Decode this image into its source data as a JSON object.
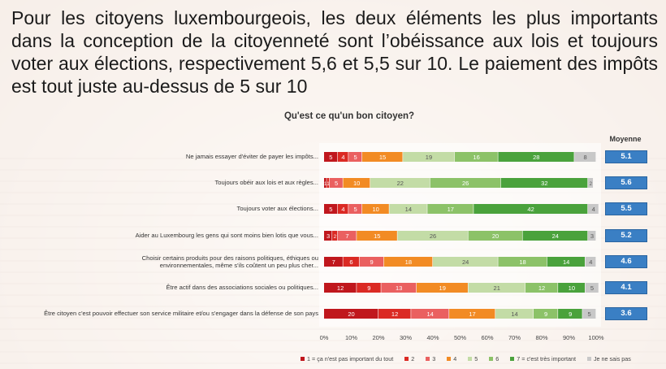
{
  "headline": "Pour les citoyens luxembourgeois, les deux éléments les plus importants dans la conception de la citoyenneté sont l’obéissance aux lois et toujours voter aux élections, respectivement 5,6 et 5,5 sur 10. Le paiement des impôts est tout juste au-dessus de 5 sur 10",
  "chart_data": {
    "type": "bar",
    "orientation": "horizontal",
    "stacked": true,
    "title": "Qu'est ce qu'un bon citoyen?",
    "average_header": "Moyenne",
    "categories": [
      "Ne jamais essayer d'éviter de payer les impôts...",
      "Toujours obéir aux lois et aux règles...",
      "Toujours voter aux élections...",
      "Aider au Luxembourg les gens qui sont moins bien lotis que vous...",
      "Choisir certains produits pour des raisons politiques, éthiques ou environnementales, même s'ils coûtent un peu plus cher...",
      "Être actif dans des associations sociales ou politiques...",
      "Être citoyen c'est pouvoir effectuer son service militaire et/ou s'engager dans la défense de son pays"
    ],
    "series": [
      {
        "name": "1 = ça n'est pas important du tout",
        "color": "#c0171d",
        "values": [
          5,
          1,
          5,
          3,
          7,
          12,
          20
        ]
      },
      {
        "name": "2",
        "color": "#db2a24",
        "values": [
          4,
          1,
          4,
          2,
          6,
          9,
          12
        ]
      },
      {
        "name": "3",
        "color": "#ea6060",
        "values": [
          5,
          5,
          5,
          7,
          9,
          13,
          14
        ]
      },
      {
        "name": "4",
        "color": "#f28b24",
        "values": [
          15,
          10,
          10,
          15,
          18,
          19,
          17
        ]
      },
      {
        "name": "5",
        "color": "#c3dca6",
        "values": [
          19,
          22,
          14,
          26,
          24,
          21,
          14
        ]
      },
      {
        "name": "6",
        "color": "#8cc268",
        "values": [
          16,
          26,
          17,
          20,
          18,
          12,
          9
        ]
      },
      {
        "name": "7 = c'est très important",
        "color": "#4aa23c",
        "values": [
          28,
          32,
          42,
          24,
          14,
          10,
          9
        ]
      },
      {
        "name": "Je ne sais pas",
        "color": "#c8c8c8",
        "values": [
          8,
          2,
          4,
          3,
          4,
          5,
          5
        ]
      }
    ],
    "averages": [
      "5.1",
      "5.6",
      "5.5",
      "5.2",
      "4.6",
      "4.1",
      "3.6"
    ],
    "xticks": [
      "0%",
      "10%",
      "20%",
      "30%",
      "40%",
      "50%",
      "60%",
      "70%",
      "80%",
      "90%",
      "100%"
    ],
    "xlim": [
      0,
      100
    ],
    "legend_position": "bottom"
  }
}
